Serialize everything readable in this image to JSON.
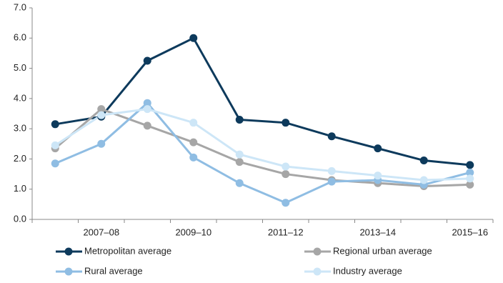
{
  "chart_data": {
    "type": "line",
    "categories": [
      null,
      "2007–08",
      null,
      "2009–10",
      null,
      "2011–12",
      null,
      "2013–14",
      null,
      "2015–16"
    ],
    "series": [
      {
        "name": "Metropolitan average",
        "color": "#0d3a5c",
        "values": [
          3.15,
          3.4,
          5.25,
          6.0,
          3.3,
          3.2,
          2.75,
          2.35,
          1.95,
          1.8
        ]
      },
      {
        "name": "Regional urban average",
        "color": "#a6a6a6",
        "values": [
          2.35,
          3.65,
          3.1,
          2.55,
          1.9,
          1.5,
          1.3,
          1.2,
          1.1,
          1.15
        ]
      },
      {
        "name": "Rural average",
        "color": "#8fbde3",
        "values": [
          1.85,
          2.5,
          3.85,
          2.05,
          1.2,
          0.55,
          1.25,
          1.3,
          1.15,
          1.55
        ]
      },
      {
        "name": "Industry average",
        "color": "#cde6f7",
        "values": [
          2.45,
          3.45,
          3.65,
          3.2,
          2.15,
          1.75,
          1.6,
          1.45,
          1.3,
          1.35
        ]
      }
    ],
    "ylim": [
      0,
      7
    ],
    "yticks": [
      {
        "value": 0,
        "label": "0.0"
      },
      {
        "value": 1,
        "label": "1.0"
      },
      {
        "value": 2,
        "label": "2.0"
      },
      {
        "value": 3,
        "label": "3.0"
      },
      {
        "value": 4,
        "label": "4.0"
      },
      {
        "value": 5,
        "label": "5.0"
      },
      {
        "value": 6,
        "label": "6.0"
      },
      {
        "value": 7,
        "label": "7.0"
      }
    ],
    "legend": "bottom"
  }
}
